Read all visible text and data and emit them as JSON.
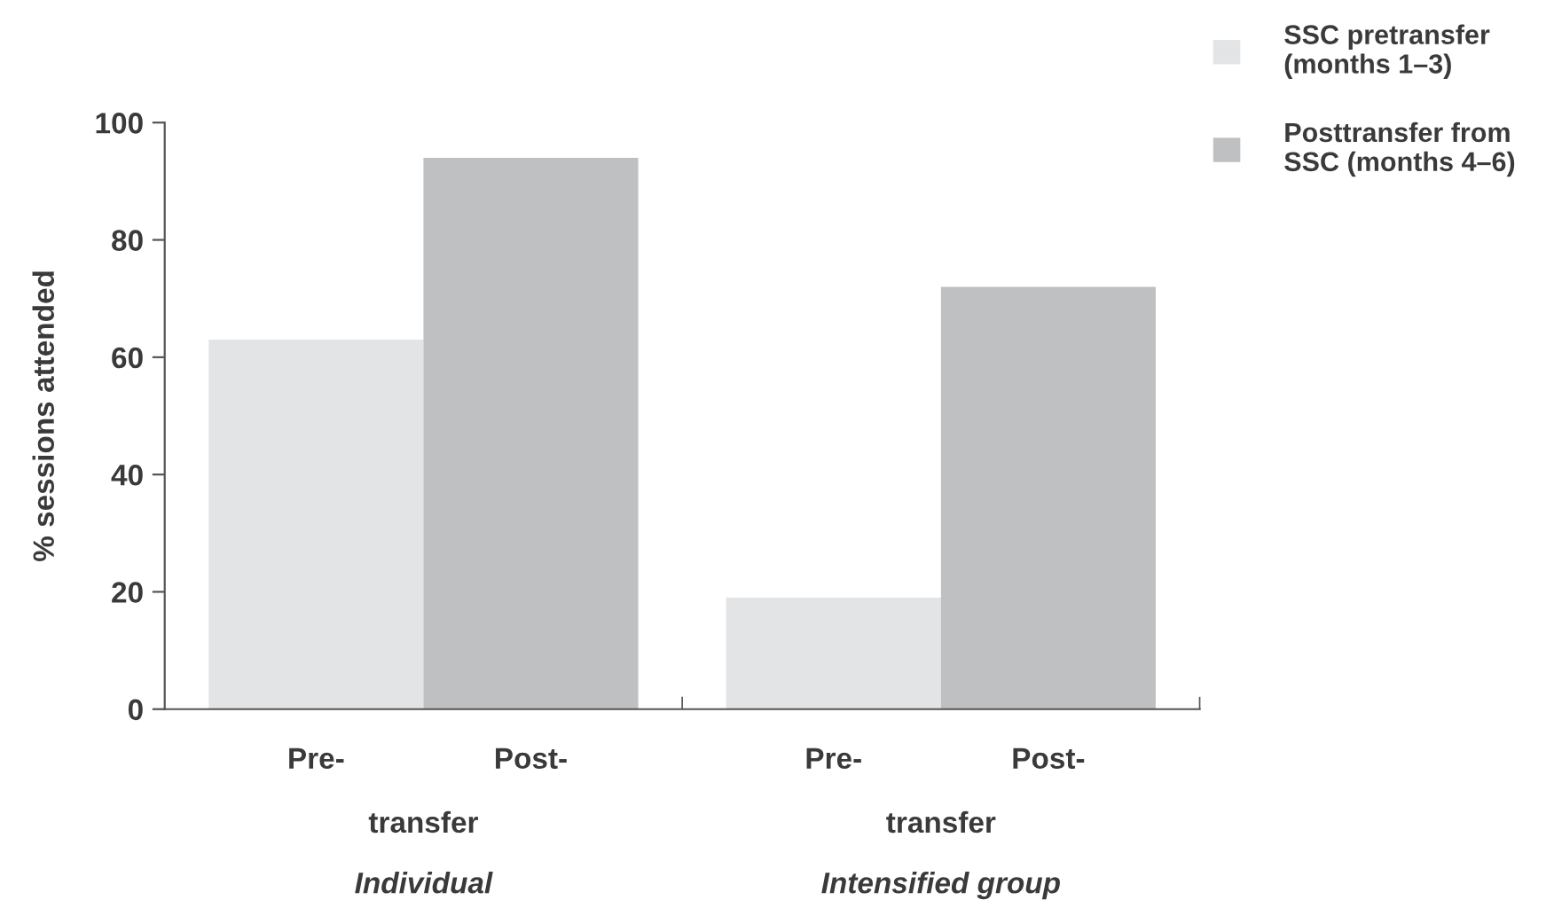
{
  "chart_data": {
    "type": "bar",
    "ylabel": "% sessions attended",
    "categories": [
      "Individual",
      "Intensified group"
    ],
    "series": [
      {
        "name": "SSC pretransfer\n(months 1–3)",
        "color": "#e3e4e6",
        "values": [
          63,
          19
        ]
      },
      {
        "name": "Posttransfer from\nSSC (months 4–6)",
        "color": "#bfc0c2",
        "values": [
          94,
          72
        ]
      }
    ],
    "ylim": [
      0,
      100
    ],
    "yticks": [
      0,
      20,
      40,
      60,
      80,
      100
    ],
    "grid": false,
    "legend": "top right",
    "annotations": [
      "Pre-",
      "Post-",
      "transfer",
      "Pre-",
      "Post-",
      "transfer"
    ]
  }
}
